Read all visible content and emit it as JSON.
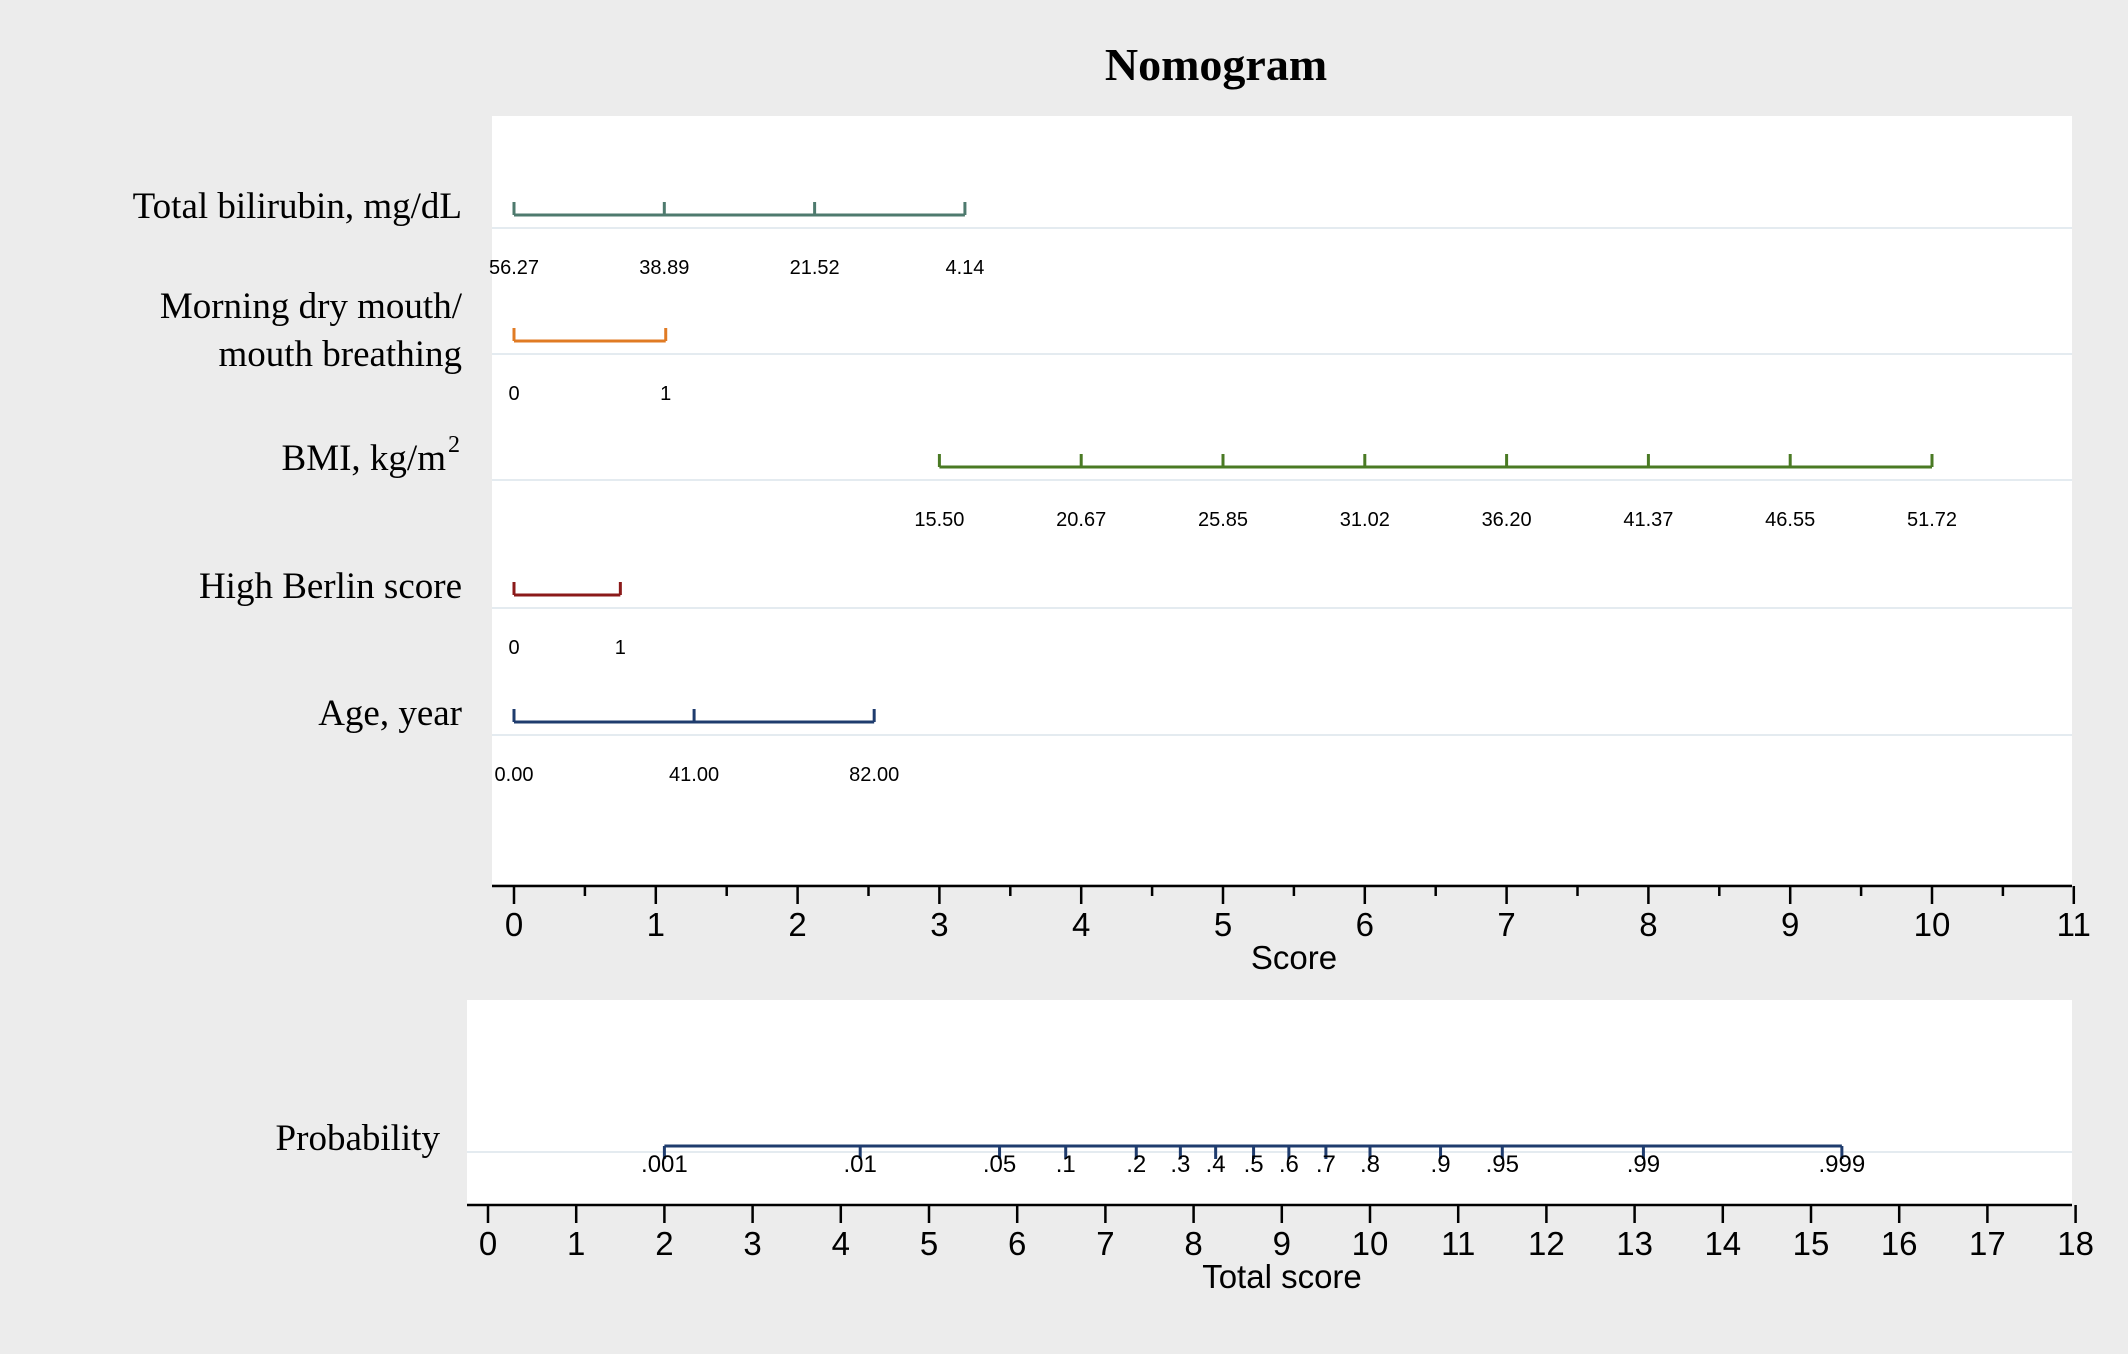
{
  "chart_data": {
    "type": "nomogram",
    "title": "Nomogram",
    "score_axis": {
      "xlabel": "Score",
      "range": [
        0,
        11
      ],
      "ticks": [
        "0",
        "1",
        "2",
        "3",
        "4",
        "5",
        "6",
        "7",
        "8",
        "9",
        "10",
        "11"
      ],
      "minor_ticks": true
    },
    "variables": [
      {
        "name": "Total bilirubin, mg/dL",
        "color": "#4e7a6e",
        "points": [
          {
            "label": "56.27",
            "score": 0
          },
          {
            "label": "38.89",
            "score": 1.06
          },
          {
            "label": "21.52",
            "score": 2.12
          },
          {
            "label": "4.14",
            "score": 3.18
          }
        ]
      },
      {
        "name": "Morning dry mouth/ mouth breathing",
        "lines": [
          "Morning dry mouth/",
          "mouth breathing"
        ],
        "color": "#e07b24",
        "points": [
          {
            "label": "0",
            "score": 0
          },
          {
            "label": "1",
            "score": 1.07
          }
        ]
      },
      {
        "name": "BMI, kg/m2",
        "display_name": "BMI, kg/m",
        "superscript": "2",
        "color": "#4a7a24",
        "points": [
          {
            "label": "15.50",
            "score": 3
          },
          {
            "label": "20.67",
            "score": 4
          },
          {
            "label": "25.85",
            "score": 5
          },
          {
            "label": "31.02",
            "score": 6
          },
          {
            "label": "36.20",
            "score": 7
          },
          {
            "label": "41.37",
            "score": 8
          },
          {
            "label": "46.55",
            "score": 9
          },
          {
            "label": "51.72",
            "score": 10
          }
        ]
      },
      {
        "name": "High Berlin score",
        "color": "#8b1a1a",
        "points": [
          {
            "label": "0",
            "score": 0
          },
          {
            "label": "1",
            "score": 0.75
          }
        ]
      },
      {
        "name": "Age, year",
        "color": "#1f3c6e",
        "points": [
          {
            "label": "0.00",
            "score": 0
          },
          {
            "label": "41.00",
            "score": 1.27
          },
          {
            "label": "82.00",
            "score": 2.54
          }
        ]
      }
    ],
    "total_axis": {
      "xlabel": "Total score",
      "range": [
        0,
        18
      ],
      "ticks": [
        "0",
        "1",
        "2",
        "3",
        "4",
        "5",
        "6",
        "7",
        "8",
        "9",
        "10",
        "11",
        "12",
        "13",
        "14",
        "15",
        "16",
        "17",
        "18"
      ]
    },
    "probability": {
      "name": "Probability",
      "color": "#1f3c6e",
      "points": [
        {
          "label": ".001",
          "total": 2.0
        },
        {
          "label": ".01",
          "total": 4.22
        },
        {
          "label": ".05",
          "total": 5.8
        },
        {
          "label": ".1",
          "total": 6.55
        },
        {
          "label": ".2",
          "total": 7.35
        },
        {
          "label": ".3",
          "total": 7.85
        },
        {
          "label": ".4",
          "total": 8.25
        },
        {
          "label": ".5",
          "total": 8.68
        },
        {
          "label": ".6",
          "total": 9.08
        },
        {
          "label": ".7",
          "total": 9.5
        },
        {
          "label": ".8",
          "total": 10.0
        },
        {
          "label": ".9",
          "total": 10.8
        },
        {
          "label": ".95",
          "total": 11.5
        },
        {
          "label": ".99",
          "total": 13.1
        },
        {
          "label": ".999",
          "total": 15.35
        }
      ]
    }
  }
}
